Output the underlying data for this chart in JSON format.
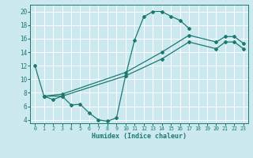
{
  "xlabel": "Humidex (Indice chaleur)",
  "bg_color": "#cce9f0",
  "line_color": "#1a7a6e",
  "grid_color": "#ffffff",
  "xlim": [
    -0.5,
    23.5
  ],
  "ylim": [
    3.5,
    21
  ],
  "xticks": [
    0,
    1,
    2,
    3,
    4,
    5,
    6,
    7,
    8,
    9,
    10,
    11,
    12,
    13,
    14,
    15,
    16,
    17,
    18,
    19,
    20,
    21,
    22,
    23
  ],
  "yticks": [
    4,
    6,
    8,
    10,
    12,
    14,
    16,
    18,
    20
  ],
  "line1_x": [
    0,
    1,
    2,
    3,
    4,
    5,
    6,
    7,
    8,
    9,
    10,
    11,
    12,
    13,
    14,
    15,
    16,
    17
  ],
  "line1_y": [
    12,
    7.5,
    7.0,
    7.5,
    6.2,
    6.3,
    5.0,
    4.0,
    3.8,
    4.3,
    10.5,
    15.8,
    19.2,
    20.0,
    20.0,
    19.3,
    18.7,
    17.5
  ],
  "line2_x": [
    1,
    3,
    10,
    14,
    17,
    20,
    21,
    22,
    23
  ],
  "line2_y": [
    7.5,
    7.8,
    11.0,
    14.0,
    16.5,
    15.5,
    16.3,
    16.3,
    15.3
  ],
  "line3_x": [
    1,
    3,
    10,
    14,
    17,
    20,
    21,
    22,
    23
  ],
  "line3_y": [
    7.5,
    7.5,
    10.5,
    13.0,
    15.5,
    14.5,
    15.5,
    15.5,
    14.5
  ]
}
